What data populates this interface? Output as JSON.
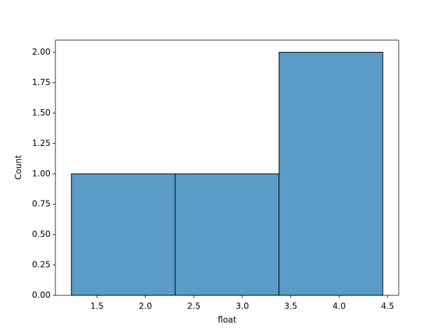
{
  "chart_data": {
    "type": "histogram",
    "xlabel": "float",
    "ylabel": "Count",
    "bins": [
      1.236,
      2.307,
      3.379,
      4.45
    ],
    "values": [
      1,
      1,
      2
    ],
    "color": "#5a9bc8",
    "xlim": [
      1.071,
      4.614
    ],
    "ylim": [
      0,
      2.1
    ],
    "xticks": [
      1.5,
      {
        "value": 2,
        "label": "2.0"
      },
      2.5,
      {
        "value": 3,
        "label": "3.0"
      },
      3.5,
      {
        "value": 4,
        "label": "4.0"
      },
      4.5
    ],
    "yticks": [
      {
        "value": 0,
        "label": "0.00"
      },
      {
        "value": 0.25,
        "label": "0.25"
      },
      {
        "value": 0.5,
        "label": "0.50"
      },
      {
        "value": 0.75,
        "label": "0.75"
      },
      {
        "value": 1,
        "label": "1.00"
      },
      {
        "value": 1.25,
        "label": "1.25"
      },
      {
        "value": 1.5,
        "label": "1.50"
      },
      {
        "value": 1.75,
        "label": "1.75"
      },
      {
        "value": 2,
        "label": "2.00"
      }
    ],
    "grid": false
  }
}
